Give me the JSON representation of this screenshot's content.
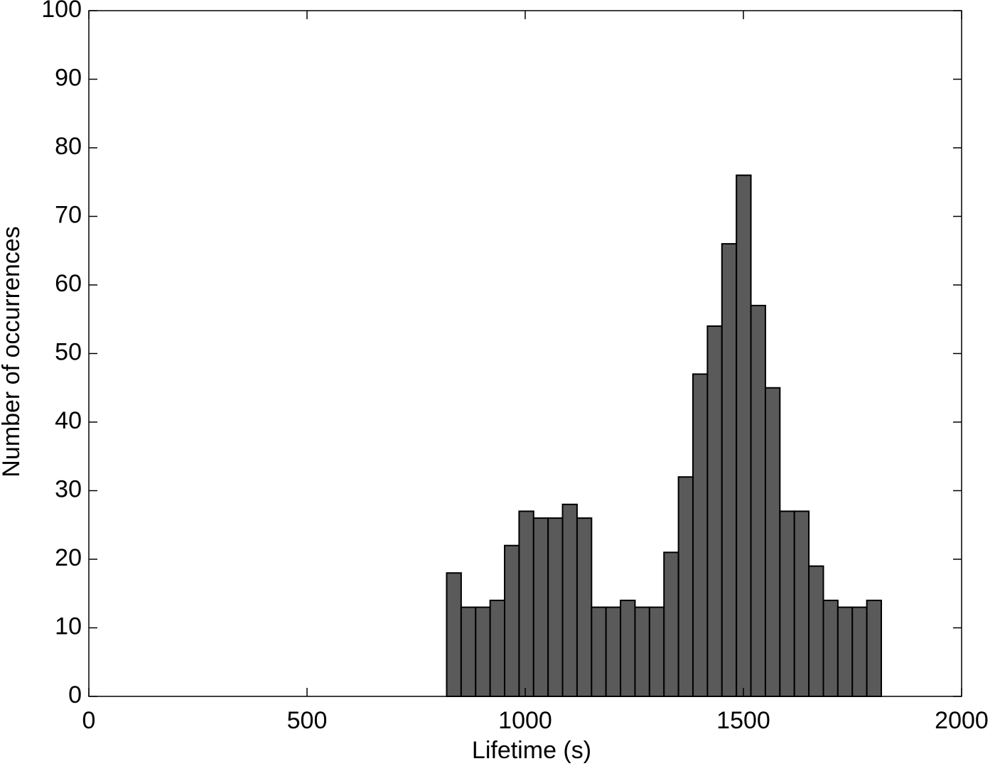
{
  "chart_data": {
    "type": "histogram",
    "x_label": "Lifetime (s)",
    "y_label": "Number of occurrences",
    "bins": [
      820,
      853.2,
      886.4,
      919.6,
      952.8,
      986,
      1019.2,
      1052.4,
      1085.6,
      1118.8,
      1152,
      1185.2,
      1218.4,
      1251.6,
      1284.8,
      1318,
      1351.2,
      1384.4,
      1417.6,
      1450.8,
      1484,
      1517.2,
      1550.4,
      1583.6,
      1616.8,
      1650,
      1683.2,
      1716.4,
      1749.6,
      1782.8,
      1816
    ],
    "counts": [
      18,
      13,
      13,
      14,
      22,
      27,
      26,
      26,
      28,
      26,
      13,
      13,
      14,
      13,
      13,
      21,
      32,
      47,
      54,
      66,
      76,
      57,
      45,
      27,
      27,
      19,
      14,
      13,
      13,
      14
    ],
    "color": "#5a5a5a",
    "xlim": [
      0,
      2000
    ],
    "xticks": [
      0,
      500,
      1000,
      1500,
      2000
    ],
    "ylim": [
      0,
      100
    ],
    "yticks": [
      0,
      10,
      20,
      30,
      40,
      50,
      60,
      70,
      80,
      90,
      100
    ],
    "grid": false
  }
}
